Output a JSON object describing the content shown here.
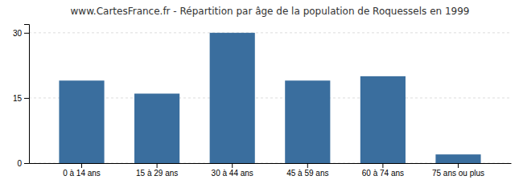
{
  "chart_data": {
    "type": "bar",
    "title": "www.CartesFrance.fr - Répartition par âge de la population de Roquessels en 1999",
    "categories": [
      "0 à 14 ans",
      "15 à 29 ans",
      "30 à 44 ans",
      "45 à 59 ans",
      "60 à 74 ans",
      "75 ans ou plus"
    ],
    "values": [
      19,
      16,
      30,
      19,
      20,
      2
    ],
    "color": "#3a6e9e",
    "ylim": [
      0,
      32
    ],
    "yticks": [
      0,
      15,
      30
    ],
    "grid": true
  }
}
